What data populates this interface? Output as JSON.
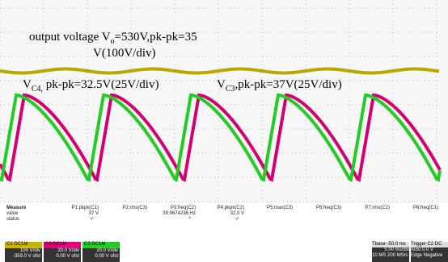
{
  "annotations": {
    "output_line1": {
      "text": "output voltage V",
      "sub": "o",
      "rest": "=530V,pk-pk=35"
    },
    "output_line2": "V(100V/div)",
    "vc4": {
      "text": "V",
      "sub": "C4,",
      "rest": " pk-pk=32.5V(25V/div)"
    },
    "vc3": {
      "text": "V",
      "sub": "C3",
      "rest": ",pk-pk=37V(25V/div)"
    }
  },
  "measure": {
    "labels": [
      "Measure",
      "value",
      "status"
    ],
    "params": [
      {
        "name": "P1:pkpk(C1)",
        "value": "37 V",
        "status": "✓"
      },
      {
        "name": "P2:rms(C3)"
      },
      {
        "name": "P3:freq(C2)",
        "value": "39.9674236 Hz",
        "status": "^"
      },
      {
        "name": "P4:pkpk(C2)",
        "value": "32.0 V",
        "status": "✓"
      },
      {
        "name": "P5:max(C3)"
      },
      {
        "name": "P6:freq(C3)"
      },
      {
        "name": "P7:rms(C2)"
      },
      {
        "name": "P8:freq(C1)"
      }
    ]
  },
  "channels": [
    {
      "label": "C1 DC1M",
      "vdiv": "100 V/div",
      "ofst": "-359.0 V ofst",
      "color": "#c8b400"
    },
    {
      "label": "C2 DC1M",
      "vdiv": "20.0 V/div",
      "ofst": "0.00 V ofst",
      "color": "#e0007a"
    },
    {
      "label": "C3 DC1M",
      "vdiv": "20.0 V/div",
      "ofst": "0.00 V ofst",
      "color": "#22cc22"
    }
  ],
  "timebase": {
    "label": "Tbase",
    "delay": "-50.0 ms",
    "div": "5.00 ms/div",
    "samples": "10 MS",
    "rate": "200 MS/s"
  },
  "trigger": {
    "label": "Trigger",
    "source": "C2 DC",
    "mode": "Auto",
    "level": "0.0 V",
    "type": "Edge",
    "slope": "Negative"
  }
}
